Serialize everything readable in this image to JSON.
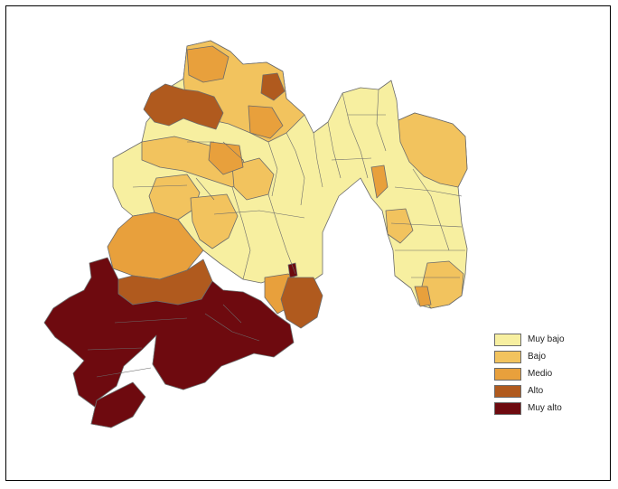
{
  "map": {
    "colors": {
      "muy_bajo": "#F7EFA0",
      "bajo": "#F2C35E",
      "medio": "#E8A03C",
      "alto": "#B05A1E",
      "muy_alto": "#6E0A0F",
      "border": "#6b6b6b"
    }
  },
  "legend": {
    "items": [
      {
        "key": "muy_bajo",
        "label": "Muy bajo",
        "color": "#F7EFA0"
      },
      {
        "key": "bajo",
        "label": "Bajo",
        "color": "#F2C35E"
      },
      {
        "key": "medio",
        "label": "Medio",
        "color": "#E8A03C"
      },
      {
        "key": "alto",
        "label": "Alto",
        "color": "#B05A1E"
      },
      {
        "key": "muy_alto",
        "label": "Muy alto",
        "color": "#6E0A0F"
      }
    ]
  }
}
